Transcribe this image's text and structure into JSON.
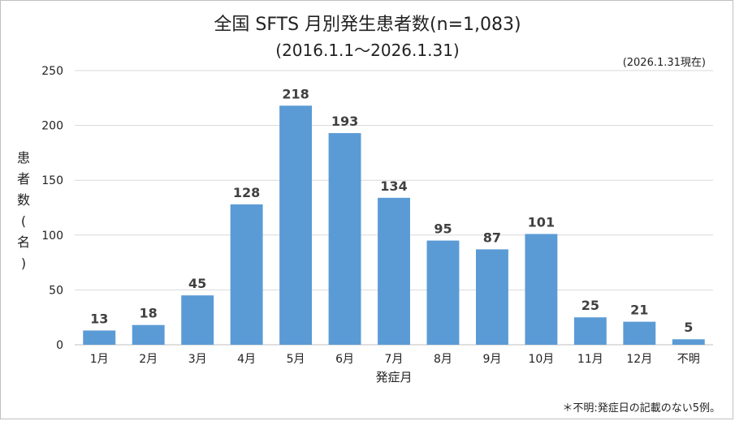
{
  "chart_data": {
    "type": "bar",
    "title": "全国 SFTS 月別発生患者数(n=1,083)",
    "subtitle": "(2016.1.1～2026.1.31)",
    "as_of": "(2026.1.31現在)",
    "xlabel": "発症月",
    "ylabel": "患者数(名)",
    "categories": [
      "1月",
      "2月",
      "3月",
      "4月",
      "5月",
      "6月",
      "7月",
      "8月",
      "9月",
      "10月",
      "11月",
      "12月",
      "不明"
    ],
    "values": [
      13,
      18,
      45,
      128,
      218,
      193,
      134,
      95,
      87,
      101,
      25,
      21,
      5
    ],
    "yticks": [
      0,
      50,
      100,
      150,
      200,
      250
    ],
    "ylim": [
      0,
      250
    ],
    "grid": true,
    "bar_color": "#5B9BD5",
    "footnote": "＊不明:発症日の記載のない5例。"
  }
}
